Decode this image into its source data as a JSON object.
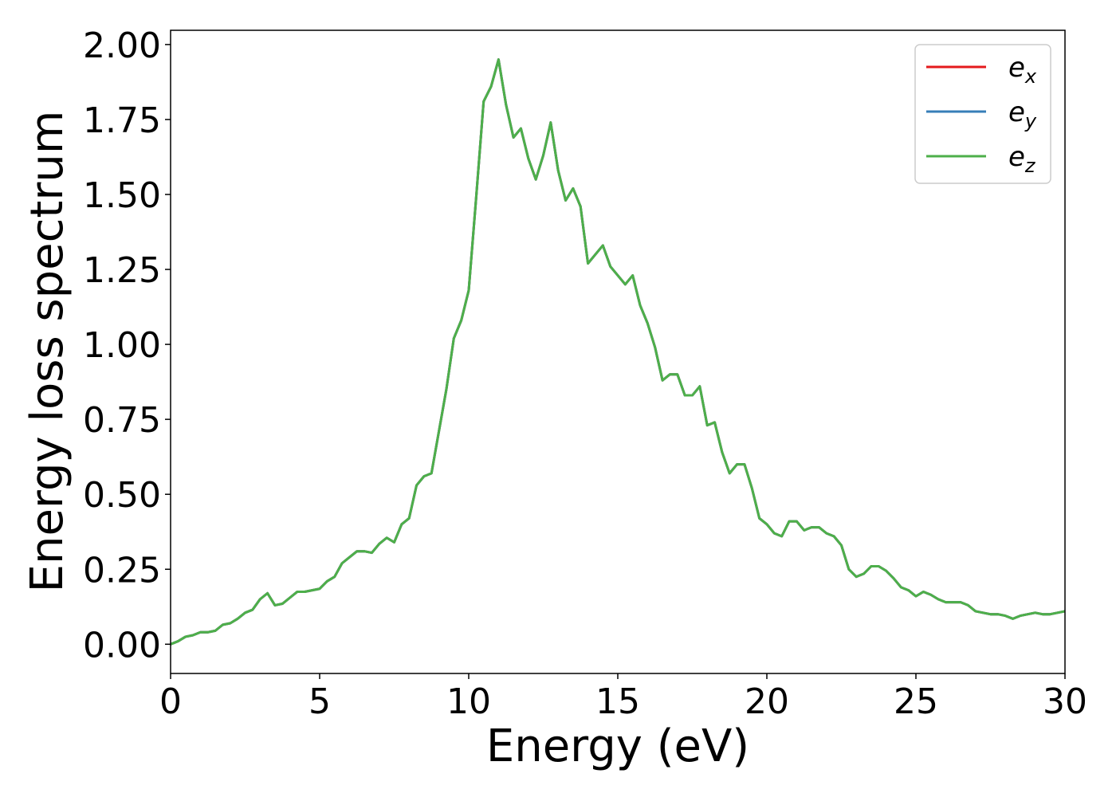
{
  "chart_data": {
    "type": "line",
    "xlabel": "Energy (eV)",
    "ylabel": "Energy loss spectrum",
    "x": [
      0,
      0.25,
      0.5,
      0.75,
      1,
      1.25,
      1.5,
      1.75,
      2,
      2.25,
      2.5,
      2.75,
      3,
      3.25,
      3.5,
      3.75,
      4,
      4.25,
      4.5,
      4.75,
      5,
      5.25,
      5.5,
      5.75,
      6,
      6.25,
      6.5,
      6.75,
      7,
      7.25,
      7.5,
      7.75,
      8,
      8.25,
      8.5,
      8.75,
      9,
      9.25,
      9.5,
      9.75,
      10,
      10.25,
      10.5,
      10.75,
      11,
      11.25,
      11.5,
      11.75,
      12,
      12.25,
      12.5,
      12.75,
      13,
      13.25,
      13.5,
      13.75,
      14,
      14.25,
      14.5,
      14.75,
      15,
      15.25,
      15.5,
      15.75,
      16,
      16.25,
      16.5,
      16.75,
      17,
      17.25,
      17.5,
      17.75,
      18,
      18.25,
      18.5,
      18.75,
      19,
      19.25,
      19.5,
      19.75,
      20,
      20.25,
      20.5,
      20.75,
      21,
      21.25,
      21.5,
      21.75,
      22,
      22.25,
      22.5,
      22.75,
      23,
      23.25,
      23.5,
      23.75,
      24,
      24.25,
      24.5,
      24.75,
      25,
      25.25,
      25.5,
      25.75,
      26,
      26.25,
      26.5,
      26.75,
      27,
      27.25,
      27.5,
      27.75,
      28,
      28.25,
      28.5,
      28.75,
      29,
      29.25,
      29.5,
      29.75,
      30
    ],
    "series": [
      {
        "name": "ex",
        "color": "#e41a1c",
        "values": [
          0,
          0.01,
          0.025,
          0.03,
          0.04,
          0.04,
          0.045,
          0.065,
          0.07,
          0.085,
          0.105,
          0.115,
          0.15,
          0.17,
          0.13,
          0.135,
          0.155,
          0.175,
          0.175,
          0.18,
          0.185,
          0.21,
          0.225,
          0.27,
          0.29,
          0.31,
          0.31,
          0.305,
          0.335,
          0.355,
          0.34,
          0.4,
          0.42,
          0.53,
          0.56,
          0.57,
          0.71,
          0.85,
          1.02,
          1.08,
          1.18,
          1.49,
          1.81,
          1.86,
          1.95,
          1.8,
          1.69,
          1.72,
          1.62,
          1.55,
          1.63,
          1.74,
          1.58,
          1.48,
          1.52,
          1.46,
          1.27,
          1.3,
          1.33,
          1.26,
          1.23,
          1.2,
          1.23,
          1.13,
          1.07,
          0.99,
          0.88,
          0.9,
          0.9,
          0.83,
          0.83,
          0.86,
          0.73,
          0.74,
          0.64,
          0.57,
          0.6,
          0.6,
          0.52,
          0.42,
          0.4,
          0.37,
          0.36,
          0.41,
          0.41,
          0.38,
          0.39,
          0.39,
          0.37,
          0.36,
          0.33,
          0.25,
          0.225,
          0.235,
          0.26,
          0.26,
          0.245,
          0.22,
          0.19,
          0.18,
          0.16,
          0.175,
          0.165,
          0.15,
          0.14,
          0.14,
          0.14,
          0.13,
          0.11,
          0.105,
          0.1,
          0.1,
          0.095,
          0.085,
          0.095,
          0.1,
          0.105,
          0.1,
          0.1,
          0.105,
          0.11
        ]
      },
      {
        "name": "ey",
        "color": "#377eb8",
        "values": [
          0,
          0.01,
          0.025,
          0.03,
          0.04,
          0.04,
          0.045,
          0.065,
          0.07,
          0.085,
          0.105,
          0.115,
          0.15,
          0.17,
          0.13,
          0.135,
          0.155,
          0.175,
          0.175,
          0.18,
          0.185,
          0.21,
          0.225,
          0.27,
          0.29,
          0.31,
          0.31,
          0.305,
          0.335,
          0.355,
          0.34,
          0.4,
          0.42,
          0.53,
          0.56,
          0.57,
          0.71,
          0.85,
          1.02,
          1.08,
          1.18,
          1.49,
          1.81,
          1.86,
          1.95,
          1.8,
          1.69,
          1.72,
          1.62,
          1.55,
          1.63,
          1.74,
          1.58,
          1.48,
          1.52,
          1.46,
          1.27,
          1.3,
          1.33,
          1.26,
          1.23,
          1.2,
          1.23,
          1.13,
          1.07,
          0.99,
          0.88,
          0.9,
          0.9,
          0.83,
          0.83,
          0.86,
          0.73,
          0.74,
          0.64,
          0.57,
          0.6,
          0.6,
          0.52,
          0.42,
          0.4,
          0.37,
          0.36,
          0.41,
          0.41,
          0.38,
          0.39,
          0.39,
          0.37,
          0.36,
          0.33,
          0.25,
          0.225,
          0.235,
          0.26,
          0.26,
          0.245,
          0.22,
          0.19,
          0.18,
          0.16,
          0.175,
          0.165,
          0.15,
          0.14,
          0.14,
          0.14,
          0.13,
          0.11,
          0.105,
          0.1,
          0.1,
          0.095,
          0.085,
          0.095,
          0.1,
          0.105,
          0.1,
          0.1,
          0.105,
          0.11
        ]
      },
      {
        "name": "ez",
        "color": "#4daf4a",
        "values": [
          0,
          0.01,
          0.025,
          0.03,
          0.04,
          0.04,
          0.045,
          0.065,
          0.07,
          0.085,
          0.105,
          0.115,
          0.15,
          0.17,
          0.13,
          0.135,
          0.155,
          0.175,
          0.175,
          0.18,
          0.185,
          0.21,
          0.225,
          0.27,
          0.29,
          0.31,
          0.31,
          0.305,
          0.335,
          0.355,
          0.34,
          0.4,
          0.42,
          0.53,
          0.56,
          0.57,
          0.71,
          0.85,
          1.02,
          1.08,
          1.18,
          1.49,
          1.81,
          1.86,
          1.95,
          1.8,
          1.69,
          1.72,
          1.62,
          1.55,
          1.63,
          1.74,
          1.58,
          1.48,
          1.52,
          1.46,
          1.27,
          1.3,
          1.33,
          1.26,
          1.23,
          1.2,
          1.23,
          1.13,
          1.07,
          0.99,
          0.88,
          0.9,
          0.9,
          0.83,
          0.83,
          0.86,
          0.73,
          0.74,
          0.64,
          0.57,
          0.6,
          0.6,
          0.52,
          0.42,
          0.4,
          0.37,
          0.36,
          0.41,
          0.41,
          0.38,
          0.39,
          0.39,
          0.37,
          0.36,
          0.33,
          0.25,
          0.225,
          0.235,
          0.26,
          0.26,
          0.245,
          0.22,
          0.19,
          0.18,
          0.16,
          0.175,
          0.165,
          0.15,
          0.14,
          0.14,
          0.14,
          0.13,
          0.11,
          0.105,
          0.1,
          0.1,
          0.095,
          0.085,
          0.095,
          0.1,
          0.105,
          0.1,
          0.1,
          0.105,
          0.11
        ]
      }
    ],
    "xlim": [
      0,
      30
    ],
    "xticks": [
      0,
      5,
      10,
      15,
      20,
      25,
      30
    ],
    "ylim": [
      -0.0975,
      2.0475
    ],
    "yticks": [
      {
        "value": 0,
        "label": "0.00"
      },
      {
        "value": 0.25,
        "label": "0.25"
      },
      {
        "value": 0.5,
        "label": "0.50"
      },
      {
        "value": 0.75,
        "label": "0.75"
      },
      {
        "value": 1,
        "label": "1.00"
      },
      {
        "value": 1.25,
        "label": "1.25"
      },
      {
        "value": 1.5,
        "label": "1.50"
      },
      {
        "value": 1.75,
        "label": "1.75"
      },
      {
        "value": 2,
        "label": "2.00"
      }
    ],
    "legend": "upper right",
    "grid": false
  }
}
